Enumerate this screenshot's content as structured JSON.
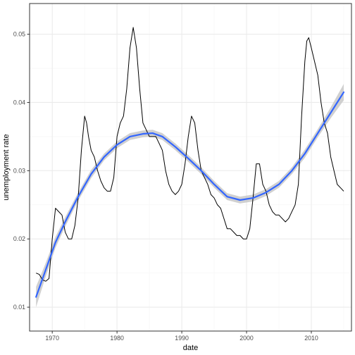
{
  "chart_data": {
    "type": "line",
    "title": "",
    "xlabel": "date",
    "ylabel": "unemployment rate",
    "x_ticks": [
      "1970",
      "1980",
      "1990",
      "2000",
      "2010"
    ],
    "y_ticks": [
      "0.01",
      "0.02",
      "0.03",
      "0.04",
      "0.05"
    ],
    "xlim": [
      1966.5,
      2016.2
    ],
    "ylim": [
      0.0065,
      0.0545
    ],
    "grid": true,
    "legend": "none",
    "colors": {
      "raw_line": "#000000",
      "smooth_line": "#3366ff",
      "confidence_band": "#c8c8c8",
      "grid_major": "#ebebeb",
      "grid_minor": "#f5f5f5",
      "panel_border": "#333333"
    },
    "series": [
      {
        "kind": "raw",
        "x": [
          1967.5,
          1968.0,
          1968.5,
          1969.0,
          1969.5,
          1970.0,
          1970.5,
          1971.0,
          1971.5,
          1972.0,
          1972.5,
          1973.0,
          1973.5,
          1974.0,
          1974.5,
          1975.0,
          1975.3,
          1975.6,
          1976.0,
          1976.5,
          1977.0,
          1977.5,
          1978.0,
          1978.5,
          1979.0,
          1979.5,
          1980.0,
          1980.5,
          1981.0,
          1981.5,
          1982.0,
          1982.5,
          1983.0,
          1983.5,
          1984.0,
          1984.5,
          1985.0,
          1985.5,
          1986.0,
          1986.5,
          1987.0,
          1987.5,
          1988.0,
          1988.5,
          1989.0,
          1989.5,
          1990.0,
          1990.5,
          1991.0,
          1991.5,
          1992.0,
          1992.5,
          1993.0,
          1993.5,
          1994.0,
          1994.5,
          1995.0,
          1995.5,
          1996.0,
          1996.5,
          1997.0,
          1997.5,
          1998.0,
          1998.5,
          1999.0,
          1999.5,
          2000.0,
          2000.5,
          2001.0,
          2001.5,
          2002.0,
          2002.5,
          2003.0,
          2003.5,
          2004.0,
          2004.5,
          2005.0,
          2005.5,
          2006.0,
          2006.5,
          2007.0,
          2007.5,
          2008.0,
          2008.5,
          2009.0,
          2009.3,
          2009.6,
          2010.0,
          2010.5,
          2011.0,
          2011.5,
          2012.0,
          2012.5,
          2013.0,
          2013.5,
          2014.0,
          2014.5,
          2015.0
        ],
        "y": [
          0.015,
          0.0148,
          0.014,
          0.0138,
          0.0142,
          0.02,
          0.0245,
          0.024,
          0.0235,
          0.021,
          0.02,
          0.02,
          0.022,
          0.026,
          0.033,
          0.038,
          0.037,
          0.035,
          0.033,
          0.032,
          0.03,
          0.0285,
          0.0275,
          0.027,
          0.027,
          0.029,
          0.035,
          0.037,
          0.038,
          0.042,
          0.048,
          0.051,
          0.048,
          0.042,
          0.037,
          0.036,
          0.035,
          0.035,
          0.035,
          0.034,
          0.033,
          0.03,
          0.028,
          0.027,
          0.0265,
          0.027,
          0.028,
          0.031,
          0.035,
          0.038,
          0.037,
          0.033,
          0.03,
          0.029,
          0.028,
          0.0265,
          0.026,
          0.025,
          0.0245,
          0.023,
          0.0215,
          0.0215,
          0.021,
          0.0205,
          0.0205,
          0.02,
          0.02,
          0.0215,
          0.026,
          0.031,
          0.031,
          0.028,
          0.027,
          0.025,
          0.024,
          0.0235,
          0.0235,
          0.023,
          0.0225,
          0.023,
          0.024,
          0.025,
          0.028,
          0.038,
          0.046,
          0.049,
          0.0495,
          0.048,
          0.046,
          0.044,
          0.04,
          0.037,
          0.0355,
          0.032,
          0.03,
          0.028,
          0.0275,
          0.027
        ]
      },
      {
        "kind": "smooth",
        "x": [
          1967.5,
          1969.0,
          1970.5,
          1972.0,
          1974.0,
          1976.0,
          1978.0,
          1980.0,
          1982.0,
          1984.0,
          1985.5,
          1987.0,
          1989.0,
          1991.0,
          1993.0,
          1995.0,
          1997.0,
          1999.0,
          2001.0,
          2003.0,
          2005.0,
          2007.0,
          2009.0,
          2011.0,
          2013.0,
          2015.0
        ],
        "y": [
          0.0115,
          0.0155,
          0.0195,
          0.0225,
          0.0262,
          0.0295,
          0.032,
          0.0338,
          0.035,
          0.0354,
          0.0355,
          0.035,
          0.0335,
          0.0318,
          0.03,
          0.028,
          0.0262,
          0.0257,
          0.026,
          0.0268,
          0.028,
          0.03,
          0.0325,
          0.0355,
          0.0385,
          0.0415
        ],
        "band_halfwidth": [
          0.0015,
          0.001,
          0.0008,
          0.0007,
          0.0006,
          0.0006,
          0.0005,
          0.0005,
          0.0005,
          0.0005,
          0.0005,
          0.0005,
          0.0005,
          0.0005,
          0.0005,
          0.0005,
          0.0005,
          0.0005,
          0.0005,
          0.0005,
          0.0005,
          0.0005,
          0.0006,
          0.0006,
          0.0008,
          0.0012
        ]
      }
    ]
  }
}
